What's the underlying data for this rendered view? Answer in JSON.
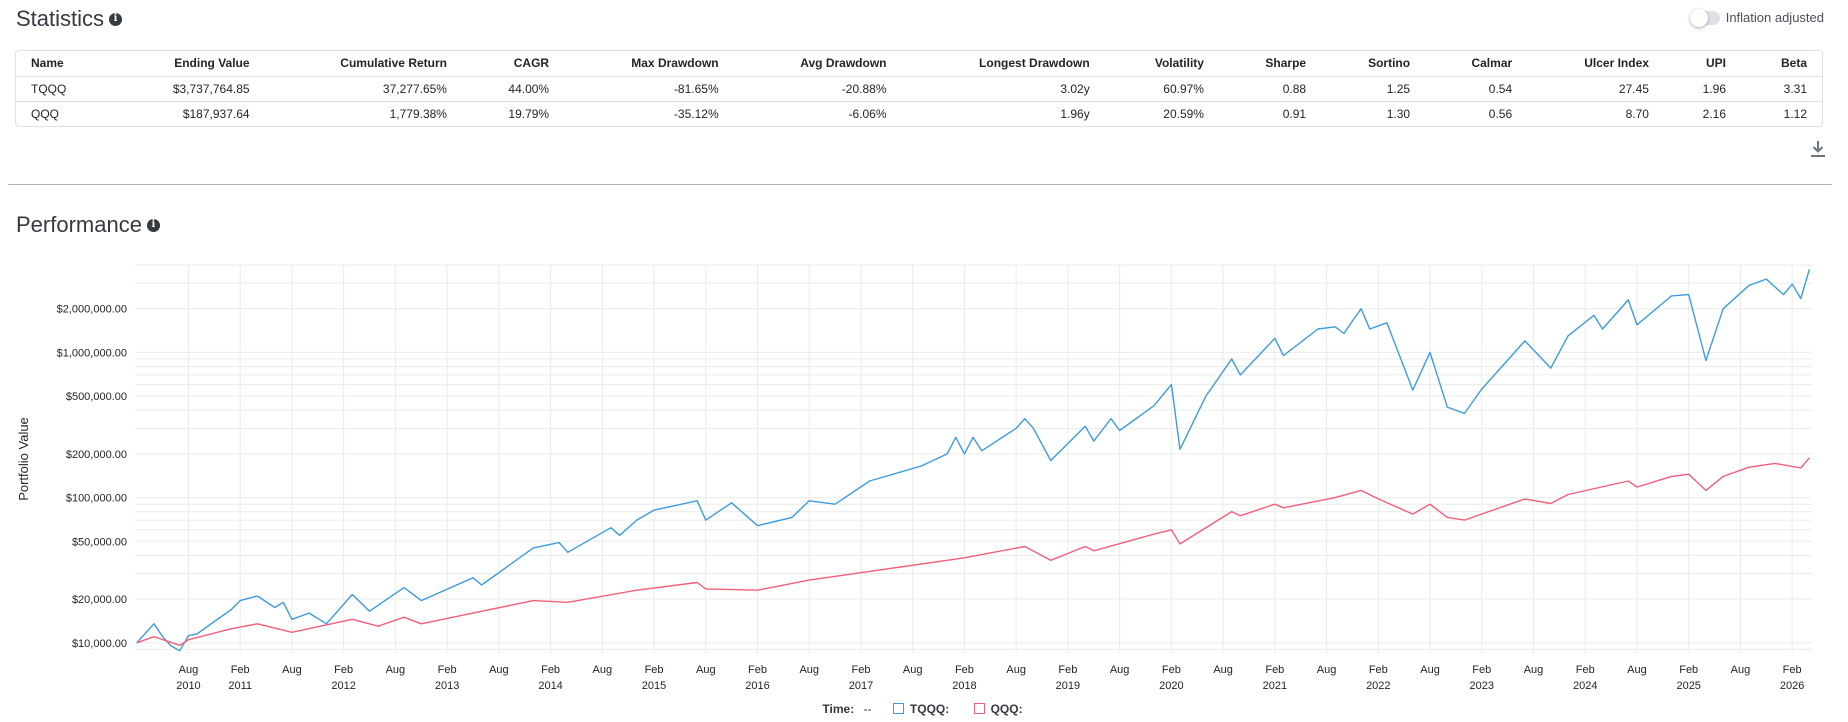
{
  "statistics": {
    "title": "Statistics",
    "toggle_label": "Inflation adjusted",
    "columns": [
      "Name",
      "Ending Value",
      "Cumulative Return",
      "CAGR",
      "Max Drawdown",
      "Avg Drawdown",
      "Longest Drawdown",
      "Volatility",
      "Sharpe",
      "Sortino",
      "Calmar",
      "Ulcer Index",
      "UPI",
      "Beta"
    ],
    "rows": [
      [
        "TQQQ",
        "$3,737,764.85",
        "37,277.65%",
        "44.00%",
        "-81.65%",
        "-20.88%",
        "3.02y",
        "60.97%",
        "0.88",
        "1.25",
        "0.54",
        "27.45",
        "1.96",
        "3.31"
      ],
      [
        "QQQ",
        "$187,937.64",
        "1,779.38%",
        "19.79%",
        "-35.12%",
        "-6.06%",
        "1.96y",
        "20.59%",
        "0.91",
        "1.30",
        "0.56",
        "8.70",
        "2.16",
        "1.12"
      ]
    ]
  },
  "performance": {
    "title": "Performance"
  },
  "legend": {
    "time_label": "Time:",
    "time_value": "--",
    "series_labels": [
      "TQQQ:",
      "QQQ:"
    ]
  },
  "chart_data": {
    "type": "line",
    "ylabel": "Portfolio Value",
    "yscale": "log",
    "ylim": [
      8500,
      4000000
    ],
    "xlim": [
      "2010-02",
      "2026-04"
    ],
    "y_ticks": [
      {
        "value": 10000,
        "label": "$10,000.00"
      },
      {
        "value": 20000,
        "label": "$20,000.00"
      },
      {
        "value": 50000,
        "label": "$50,000.00"
      },
      {
        "value": 100000,
        "label": "$100,000.00"
      },
      {
        "value": 200000,
        "label": "$200,000.00"
      },
      {
        "value": 500000,
        "label": "$500,000.00"
      },
      {
        "value": 1000000,
        "label": "$1,000,000.00"
      },
      {
        "value": 2000000,
        "label": "$2,000,000.00"
      }
    ],
    "x_ticks": [
      {
        "date": "2010-08",
        "label": "Aug",
        "year": "2010"
      },
      {
        "date": "2011-02",
        "label": "Feb",
        "year": "2011"
      },
      {
        "date": "2011-08",
        "label": "Aug",
        "year": ""
      },
      {
        "date": "2012-02",
        "label": "Feb",
        "year": "2012"
      },
      {
        "date": "2012-08",
        "label": "Aug",
        "year": ""
      },
      {
        "date": "2013-02",
        "label": "Feb",
        "year": "2013"
      },
      {
        "date": "2013-08",
        "label": "Aug",
        "year": ""
      },
      {
        "date": "2014-02",
        "label": "Feb",
        "year": "2014"
      },
      {
        "date": "2014-08",
        "label": "Aug",
        "year": ""
      },
      {
        "date": "2015-02",
        "label": "Feb",
        "year": "2015"
      },
      {
        "date": "2015-08",
        "label": "Aug",
        "year": ""
      },
      {
        "date": "2016-02",
        "label": "Feb",
        "year": "2016"
      },
      {
        "date": "2016-08",
        "label": "Aug",
        "year": ""
      },
      {
        "date": "2017-02",
        "label": "Feb",
        "year": "2017"
      },
      {
        "date": "2017-08",
        "label": "Aug",
        "year": ""
      },
      {
        "date": "2018-02",
        "label": "Feb",
        "year": "2018"
      },
      {
        "date": "2018-08",
        "label": "Aug",
        "year": ""
      },
      {
        "date": "2019-02",
        "label": "Feb",
        "year": "2019"
      },
      {
        "date": "2019-08",
        "label": "Aug",
        "year": ""
      },
      {
        "date": "2020-02",
        "label": "Feb",
        "year": "2020"
      },
      {
        "date": "2020-08",
        "label": "Aug",
        "year": ""
      },
      {
        "date": "2021-02",
        "label": "Feb",
        "year": "2021"
      },
      {
        "date": "2021-08",
        "label": "Aug",
        "year": ""
      },
      {
        "date": "2022-02",
        "label": "Feb",
        "year": "2022"
      },
      {
        "date": "2022-08",
        "label": "Aug",
        "year": ""
      },
      {
        "date": "2023-02",
        "label": "Feb",
        "year": "2023"
      },
      {
        "date": "2023-08",
        "label": "Aug",
        "year": ""
      },
      {
        "date": "2024-02",
        "label": "Feb",
        "year": "2024"
      },
      {
        "date": "2024-08",
        "label": "Aug",
        "year": ""
      },
      {
        "date": "2025-02",
        "label": "Feb",
        "year": "2025"
      },
      {
        "date": "2025-08",
        "label": "Aug",
        "year": ""
      },
      {
        "date": "2026-02",
        "label": "Feb",
        "year": "2026"
      }
    ],
    "grid": true,
    "series": [
      {
        "name": "TQQQ",
        "color": "#3d9be0",
        "points": [
          [
            "2010-02",
            10000
          ],
          [
            "2010-04",
            13500
          ],
          [
            "2010-05",
            11000
          ],
          [
            "2010-06",
            9500
          ],
          [
            "2010-07",
            8800
          ],
          [
            "2010-08",
            11200
          ],
          [
            "2010-09",
            11500
          ],
          [
            "2010-11",
            14000
          ],
          [
            "2011-01",
            17000
          ],
          [
            "2011-02",
            19500
          ],
          [
            "2011-04",
            21000
          ],
          [
            "2011-06",
            17500
          ],
          [
            "2011-07",
            19000
          ],
          [
            "2011-08",
            14500
          ],
          [
            "2011-10",
            16000
          ],
          [
            "2011-12",
            13500
          ],
          [
            "2012-03",
            21500
          ],
          [
            "2012-05",
            16500
          ],
          [
            "2012-09",
            24000
          ],
          [
            "2012-11",
            19500
          ],
          [
            "2013-01",
            22000
          ],
          [
            "2013-05",
            28000
          ],
          [
            "2013-06",
            25000
          ],
          [
            "2013-12",
            45000
          ],
          [
            "2014-03",
            49000
          ],
          [
            "2014-04",
            42000
          ],
          [
            "2014-09",
            62000
          ],
          [
            "2014-10",
            55000
          ],
          [
            "2014-12",
            70000
          ],
          [
            "2015-02",
            82000
          ],
          [
            "2015-07",
            95000
          ],
          [
            "2015-08",
            70000
          ],
          [
            "2015-11",
            92000
          ],
          [
            "2016-02",
            64000
          ],
          [
            "2016-06",
            73000
          ],
          [
            "2016-08",
            95000
          ],
          [
            "2016-11",
            90000
          ],
          [
            "2017-03",
            130000
          ],
          [
            "2017-09",
            165000
          ],
          [
            "2017-12",
            200000
          ],
          [
            "2018-01",
            260000
          ],
          [
            "2018-02",
            200000
          ],
          [
            "2018-03",
            260000
          ],
          [
            "2018-04",
            210000
          ],
          [
            "2018-08",
            300000
          ],
          [
            "2018-09",
            350000
          ],
          [
            "2018-10",
            300000
          ],
          [
            "2018-12",
            180000
          ],
          [
            "2019-04",
            310000
          ],
          [
            "2019-05",
            245000
          ],
          [
            "2019-07",
            350000
          ],
          [
            "2019-08",
            290000
          ],
          [
            "2019-12",
            430000
          ],
          [
            "2020-02",
            600000
          ],
          [
            "2020-03",
            215000
          ],
          [
            "2020-06",
            500000
          ],
          [
            "2020-09",
            900000
          ],
          [
            "2020-10",
            700000
          ],
          [
            "2021-02",
            1250000
          ],
          [
            "2021-03",
            950000
          ],
          [
            "2021-07",
            1450000
          ],
          [
            "2021-09",
            1500000
          ],
          [
            "2021-10",
            1350000
          ],
          [
            "2021-12",
            2000000
          ],
          [
            "2022-01",
            1450000
          ],
          [
            "2022-03",
            1600000
          ],
          [
            "2022-06",
            550000
          ],
          [
            "2022-08",
            1000000
          ],
          [
            "2022-10",
            420000
          ],
          [
            "2022-12",
            380000
          ],
          [
            "2023-02",
            560000
          ],
          [
            "2023-07",
            1200000
          ],
          [
            "2023-10",
            780000
          ],
          [
            "2023-12",
            1300000
          ],
          [
            "2024-03",
            1800000
          ],
          [
            "2024-04",
            1450000
          ],
          [
            "2024-07",
            2300000
          ],
          [
            "2024-08",
            1550000
          ],
          [
            "2024-12",
            2450000
          ],
          [
            "2025-02",
            2500000
          ],
          [
            "2025-04",
            880000
          ],
          [
            "2025-06",
            2000000
          ],
          [
            "2025-09",
            2900000
          ],
          [
            "2025-11",
            3200000
          ],
          [
            "2026-01",
            2500000
          ],
          [
            "2026-02",
            2950000
          ],
          [
            "2026-03",
            2350000
          ],
          [
            "2026-04",
            3737764.85
          ]
        ]
      },
      {
        "name": "QQQ",
        "color": "#f25f7a",
        "points": [
          [
            "2010-02",
            10000
          ],
          [
            "2010-04",
            11000
          ],
          [
            "2010-07",
            9600
          ],
          [
            "2010-08",
            10500
          ],
          [
            "2011-01",
            12500
          ],
          [
            "2011-04",
            13500
          ],
          [
            "2011-08",
            11800
          ],
          [
            "2012-03",
            14500
          ],
          [
            "2012-06",
            13000
          ],
          [
            "2012-09",
            15000
          ],
          [
            "2012-11",
            13500
          ],
          [
            "2013-05",
            16000
          ],
          [
            "2013-12",
            19500
          ],
          [
            "2014-04",
            19000
          ],
          [
            "2014-12",
            23000
          ],
          [
            "2015-07",
            26000
          ],
          [
            "2015-08",
            23500
          ],
          [
            "2016-02",
            23000
          ],
          [
            "2016-08",
            27000
          ],
          [
            "2017-03",
            31000
          ],
          [
            "2017-12",
            37000
          ],
          [
            "2018-02",
            38500
          ],
          [
            "2018-09",
            46000
          ],
          [
            "2018-12",
            37000
          ],
          [
            "2019-04",
            46000
          ],
          [
            "2019-05",
            43000
          ],
          [
            "2019-12",
            56000
          ],
          [
            "2020-02",
            60000
          ],
          [
            "2020-03",
            48000
          ],
          [
            "2020-09",
            80000
          ],
          [
            "2020-10",
            75000
          ],
          [
            "2021-02",
            90000
          ],
          [
            "2021-03",
            85000
          ],
          [
            "2021-09",
            100000
          ],
          [
            "2021-12",
            112000
          ],
          [
            "2022-02",
            98000
          ],
          [
            "2022-06",
            77000
          ],
          [
            "2022-08",
            90000
          ],
          [
            "2022-10",
            73000
          ],
          [
            "2022-12",
            70000
          ],
          [
            "2023-07",
            98000
          ],
          [
            "2023-10",
            91000
          ],
          [
            "2023-12",
            105000
          ],
          [
            "2024-07",
            130000
          ],
          [
            "2024-08",
            118000
          ],
          [
            "2024-12",
            140000
          ],
          [
            "2025-02",
            145000
          ],
          [
            "2025-04",
            112000
          ],
          [
            "2025-06",
            140000
          ],
          [
            "2025-09",
            162000
          ],
          [
            "2025-12",
            172000
          ],
          [
            "2026-03",
            160000
          ],
          [
            "2026-04",
            187937.64
          ]
        ]
      }
    ]
  }
}
